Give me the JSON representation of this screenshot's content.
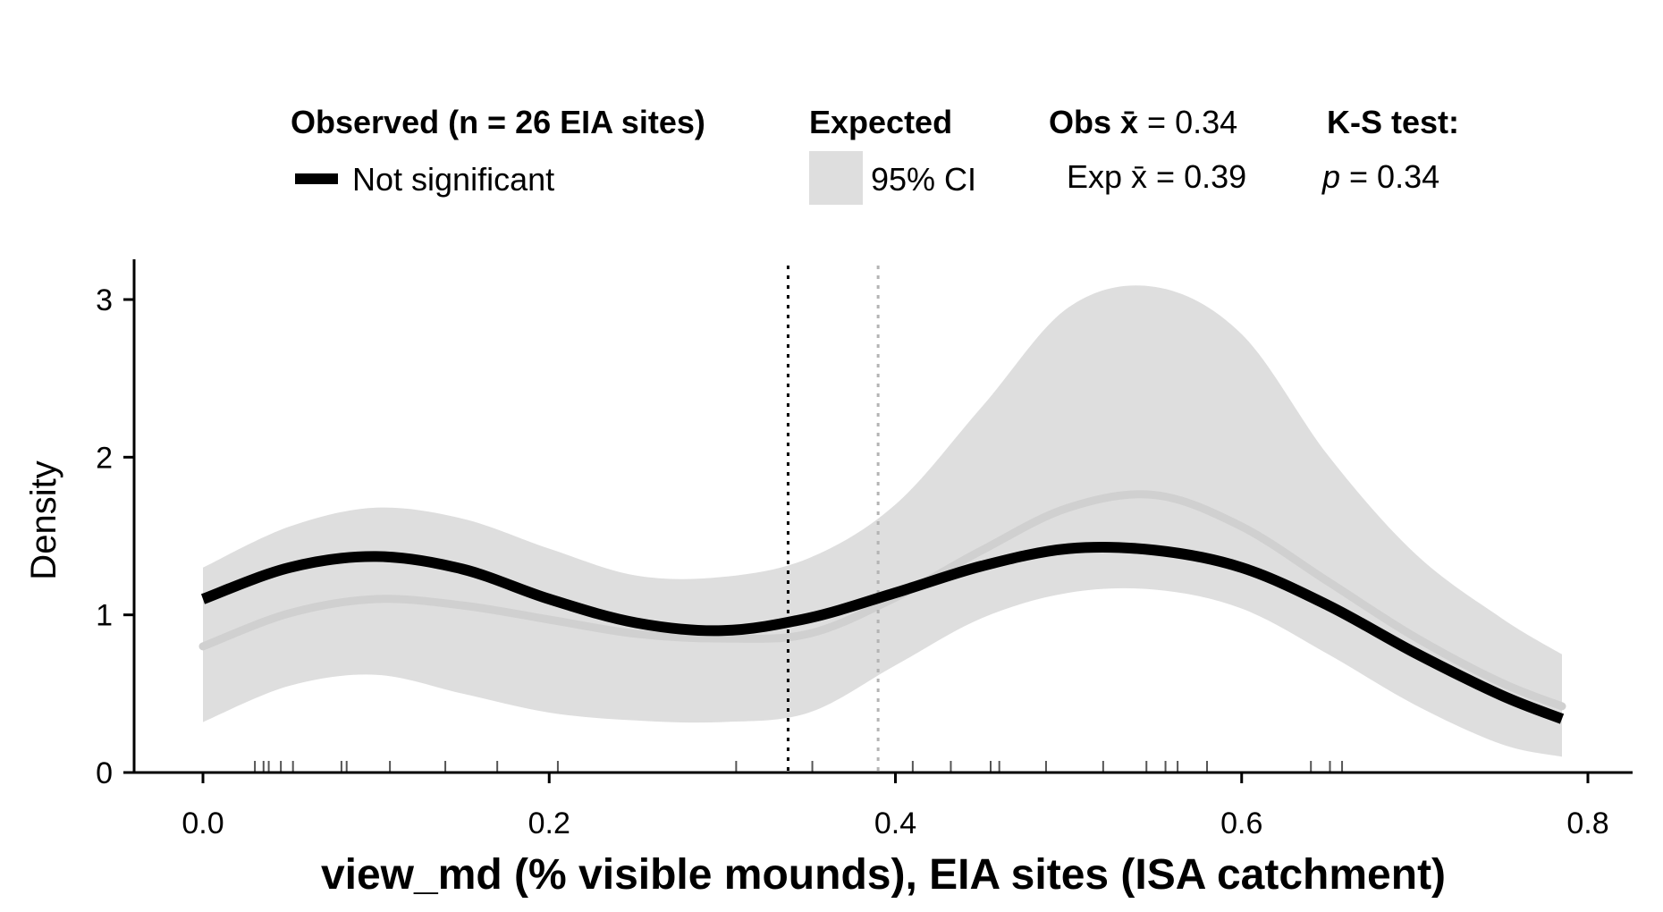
{
  "legend": {
    "observed_title": "Observed (n = 26 EIA sites)",
    "observed_item": "Not significant",
    "expected_title": "Expected",
    "expected_item": "95% CI",
    "obs_mean_prefix": "Obs ",
    "obs_mean_symbol": "x̄",
    "obs_mean_value": " = 0.34",
    "exp_mean_prefix": "Exp ",
    "exp_mean_symbol": "x̄",
    "exp_mean_value": " = 0.39",
    "ks_title": "K-S test:",
    "ks_p_symbol": "p",
    "ks_p_value": " = 0.34"
  },
  "chart_data": {
    "type": "area",
    "xlabel": "view_md (% visible mounds), EIA sites (ISA catchment)",
    "ylabel": "Density",
    "xlim": [
      -0.04,
      0.82
    ],
    "ylim": [
      0,
      3.3
    ],
    "x_ticks": [
      0.0,
      0.2,
      0.4,
      0.6,
      0.8
    ],
    "x_tick_labels": [
      "0.0",
      "0.2",
      "0.4",
      "0.6",
      "0.8"
    ],
    "y_ticks": [
      0,
      1,
      2,
      3
    ],
    "y_tick_labels": [
      "0",
      "1",
      "2",
      "3"
    ],
    "grid": false,
    "legend_position": "top",
    "colors": {
      "observed": "#000000",
      "expected": "#d0d0d0",
      "ci": "#dedede",
      "exp_mean_line": "#b4b4b4"
    },
    "x": [
      0.0,
      0.05,
      0.1,
      0.15,
      0.2,
      0.25,
      0.3,
      0.35,
      0.4,
      0.45,
      0.5,
      0.55,
      0.6,
      0.65,
      0.7,
      0.75,
      0.785
    ],
    "series": [
      {
        "role": "observed",
        "values": [
          1.1,
          1.3,
          1.37,
          1.29,
          1.1,
          0.95,
          0.9,
          0.98,
          1.14,
          1.31,
          1.42,
          1.41,
          1.3,
          1.06,
          0.76,
          0.49,
          0.34
        ]
      },
      {
        "role": "expected",
        "values": [
          0.8,
          1.01,
          1.1,
          1.06,
          0.97,
          0.88,
          0.85,
          0.88,
          1.11,
          1.41,
          1.68,
          1.76,
          1.56,
          1.21,
          0.86,
          0.57,
          0.42
        ]
      },
      {
        "role": "ci_upper",
        "values": [
          1.3,
          1.56,
          1.68,
          1.61,
          1.42,
          1.25,
          1.24,
          1.36,
          1.7,
          2.32,
          2.95,
          3.08,
          2.78,
          2.01,
          1.39,
          0.98,
          0.75
        ]
      },
      {
        "role": "ci_lower",
        "values": [
          0.32,
          0.55,
          0.62,
          0.5,
          0.38,
          0.33,
          0.32,
          0.38,
          0.68,
          0.98,
          1.14,
          1.16,
          1.04,
          0.75,
          0.43,
          0.18,
          0.1
        ]
      }
    ],
    "obs_mean": 0.338,
    "exp_mean": 0.39,
    "rug": [
      0.03,
      0.035,
      0.038,
      0.045,
      0.052,
      0.08,
      0.083,
      0.108,
      0.14,
      0.17,
      0.205,
      0.308,
      0.352,
      0.41,
      0.432,
      0.455,
      0.46,
      0.487,
      0.52,
      0.545,
      0.556,
      0.563,
      0.58,
      0.64,
      0.651,
      0.658
    ]
  }
}
